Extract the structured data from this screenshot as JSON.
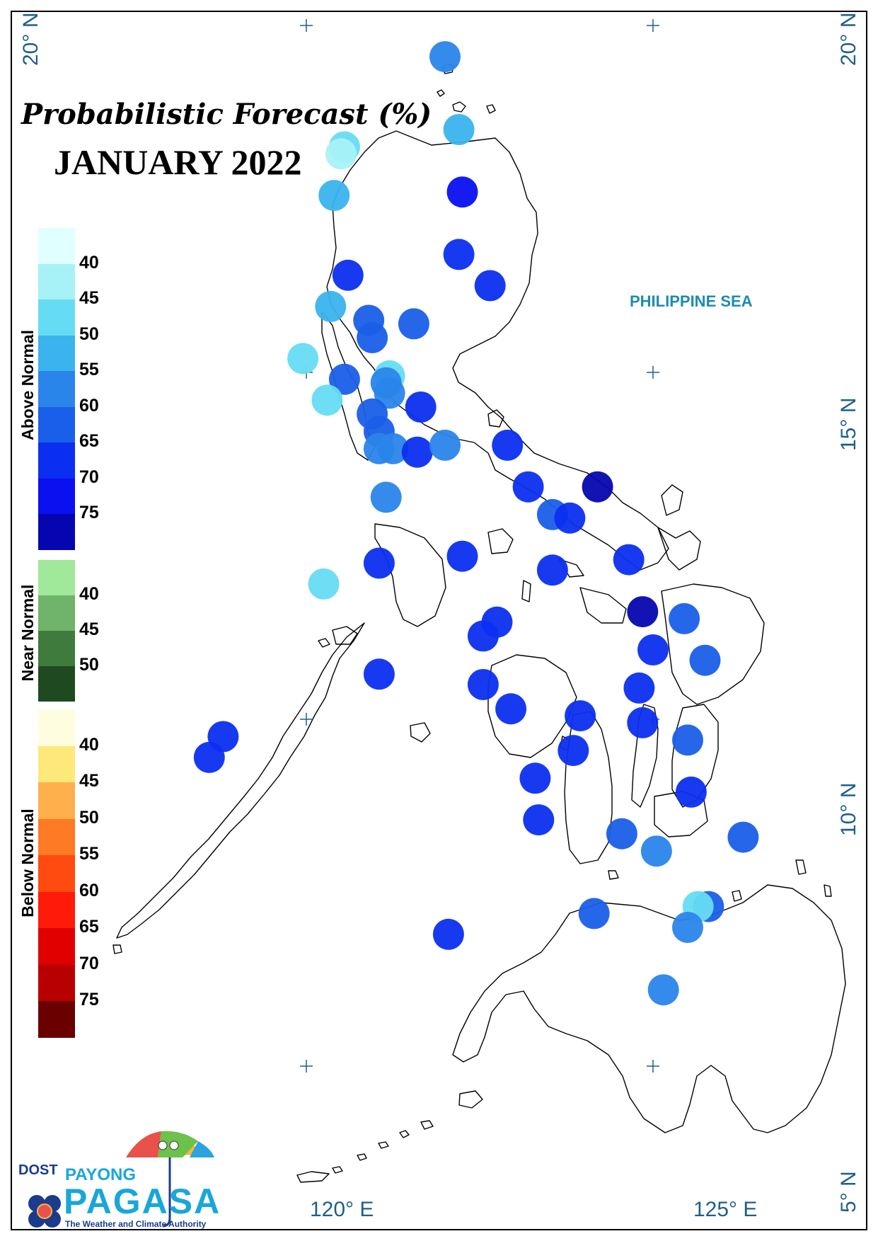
{
  "map": {
    "title": "Probabilistic Forecast (%)",
    "subtitle": "JANUARY 2022",
    "sea_label": "PHILIPPINE SEA",
    "coords": {
      "lat_20_left": "20° N",
      "lat_20_right": "20° N",
      "lat_15": "15° N",
      "lat_10": "10° N",
      "lat_5": "5° N",
      "lon_120": "120° E",
      "lon_125": "125° E"
    }
  },
  "legend": {
    "above_normal": {
      "title": "Above Normal",
      "ticks": [
        "40",
        "45",
        "50",
        "55",
        "60",
        "65",
        "70",
        "75"
      ],
      "colors": [
        "#e0ffff",
        "#a6f2f7",
        "#66dcf4",
        "#3bb3ee",
        "#2a85ea",
        "#1a5fe9",
        "#0b2ff0",
        "#0a10f0",
        "#0606b0"
      ]
    },
    "near_normal": {
      "title": "Near Normal",
      "ticks": [
        "40",
        "45",
        "50"
      ],
      "colors": [
        "#a0e89a",
        "#6fb46a",
        "#3f7b3c",
        "#1f4a1f"
      ]
    },
    "below_normal": {
      "title": "Below Normal",
      "ticks": [
        "40",
        "45",
        "50",
        "55",
        "60",
        "65",
        "70",
        "75"
      ],
      "colors": [
        "#fffde0",
        "#ffe87a",
        "#ffb04c",
        "#ff7a24",
        "#ff4a10",
        "#ff1a0a",
        "#e00000",
        "#b80000",
        "#6a0000"
      ]
    }
  },
  "logo": {
    "agency": "DOST",
    "brand_top": "PAYONG",
    "brand_main": "PAGASA",
    "tagline": "The Weather and Climate Authority"
  },
  "stations": [
    {
      "lon": 122.0,
      "lat": 19.55,
      "pct": 55,
      "color": "#2a85ea"
    },
    {
      "lon": 122.2,
      "lat": 18.5,
      "pct": 50,
      "color": "#3bb3ee"
    },
    {
      "lon": 120.55,
      "lat": 18.25,
      "pct": 45,
      "color": "#66dcf4"
    },
    {
      "lon": 120.5,
      "lat": 18.15,
      "pct": 40,
      "color": "#a6f2f7"
    },
    {
      "lon": 122.25,
      "lat": 17.6,
      "pct": 70,
      "color": "#0a10f0"
    },
    {
      "lon": 120.4,
      "lat": 17.55,
      "pct": 50,
      "color": "#3bb3ee"
    },
    {
      "lon": 122.2,
      "lat": 16.7,
      "pct": 65,
      "color": "#0b2ff0"
    },
    {
      "lon": 120.6,
      "lat": 16.4,
      "pct": 65,
      "color": "#0b2ff0"
    },
    {
      "lon": 122.65,
      "lat": 16.25,
      "pct": 65,
      "color": "#0b2ff0"
    },
    {
      "lon": 120.35,
      "lat": 15.95,
      "pct": 50,
      "color": "#3bb3ee"
    },
    {
      "lon": 120.9,
      "lat": 15.75,
      "pct": 60,
      "color": "#1a5fe9"
    },
    {
      "lon": 121.55,
      "lat": 15.7,
      "pct": 60,
      "color": "#1a5fe9"
    },
    {
      "lon": 120.95,
      "lat": 15.5,
      "pct": 60,
      "color": "#1a5fe9"
    },
    {
      "lon": 119.95,
      "lat": 15.2,
      "pct": 45,
      "color": "#66dcf4"
    },
    {
      "lon": 120.55,
      "lat": 14.9,
      "pct": 60,
      "color": "#1a5fe9"
    },
    {
      "lon": 121.2,
      "lat": 14.95,
      "pct": 45,
      "color": "#66dcf4"
    },
    {
      "lon": 121.15,
      "lat": 14.85,
      "pct": 55,
      "color": "#2a85ea"
    },
    {
      "lon": 121.2,
      "lat": 14.7,
      "pct": 55,
      "color": "#2a85ea"
    },
    {
      "lon": 120.3,
      "lat": 14.6,
      "pct": 45,
      "color": "#66dcf4"
    },
    {
      "lon": 121.65,
      "lat": 14.5,
      "pct": 65,
      "color": "#0b2ff0"
    },
    {
      "lon": 120.95,
      "lat": 14.4,
      "pct": 60,
      "color": "#1a5fe9"
    },
    {
      "lon": 121.05,
      "lat": 14.15,
      "pct": 60,
      "color": "#1a5fe9"
    },
    {
      "lon": 121.05,
      "lat": 13.9,
      "pct": 55,
      "color": "#2a85ea"
    },
    {
      "lon": 121.25,
      "lat": 13.9,
      "pct": 55,
      "color": "#2a85ea"
    },
    {
      "lon": 121.6,
      "lat": 13.85,
      "pct": 65,
      "color": "#0b2ff0"
    },
    {
      "lon": 122.0,
      "lat": 13.95,
      "pct": 55,
      "color": "#2a85ea"
    },
    {
      "lon": 122.9,
      "lat": 13.95,
      "pct": 65,
      "color": "#0b2ff0"
    },
    {
      "lon": 123.2,
      "lat": 13.35,
      "pct": 65,
      "color": "#0b2ff0"
    },
    {
      "lon": 124.2,
      "lat": 13.35,
      "pct": 75,
      "color": "#0606b0"
    },
    {
      "lon": 121.15,
      "lat": 13.2,
      "pct": 55,
      "color": "#2a85ea"
    },
    {
      "lon": 123.55,
      "lat": 12.95,
      "pct": 60,
      "color": "#1a5fe9"
    },
    {
      "lon": 123.8,
      "lat": 12.9,
      "pct": 65,
      "color": "#0b2ff0"
    },
    {
      "lon": 122.25,
      "lat": 12.35,
      "pct": 65,
      "color": "#0b2ff0"
    },
    {
      "lon": 124.65,
      "lat": 12.3,
      "pct": 65,
      "color": "#0b2ff0"
    },
    {
      "lon": 121.05,
      "lat": 12.25,
      "pct": 65,
      "color": "#0b2ff0"
    },
    {
      "lon": 123.55,
      "lat": 12.15,
      "pct": 65,
      "color": "#0b2ff0"
    },
    {
      "lon": 120.25,
      "lat": 11.95,
      "pct": 45,
      "color": "#66dcf4"
    },
    {
      "lon": 124.85,
      "lat": 11.55,
      "pct": 75,
      "color": "#0606b0"
    },
    {
      "lon": 125.45,
      "lat": 11.45,
      "pct": 60,
      "color": "#1a5fe9"
    },
    {
      "lon": 122.75,
      "lat": 11.4,
      "pct": 65,
      "color": "#0b2ff0"
    },
    {
      "lon": 122.55,
      "lat": 11.2,
      "pct": 65,
      "color": "#0b2ff0"
    },
    {
      "lon": 125.0,
      "lat": 11.0,
      "pct": 65,
      "color": "#0b2ff0"
    },
    {
      "lon": 125.75,
      "lat": 10.85,
      "pct": 60,
      "color": "#1a5fe9"
    },
    {
      "lon": 121.05,
      "lat": 10.65,
      "pct": 65,
      "color": "#0b2ff0"
    },
    {
      "lon": 122.55,
      "lat": 10.5,
      "pct": 65,
      "color": "#0b2ff0"
    },
    {
      "lon": 124.8,
      "lat": 10.45,
      "pct": 65,
      "color": "#0b2ff0"
    },
    {
      "lon": 122.95,
      "lat": 10.15,
      "pct": 65,
      "color": "#0b2ff0"
    },
    {
      "lon": 123.95,
      "lat": 10.05,
      "pct": 65,
      "color": "#0b2ff0"
    },
    {
      "lon": 124.85,
      "lat": 9.95,
      "pct": 65,
      "color": "#0b2ff0"
    },
    {
      "lon": 118.8,
      "lat": 9.75,
      "pct": 65,
      "color": "#0b2ff0"
    },
    {
      "lon": 125.5,
      "lat": 9.7,
      "pct": 60,
      "color": "#1a5fe9"
    },
    {
      "lon": 123.85,
      "lat": 9.55,
      "pct": 65,
      "color": "#0b2ff0"
    },
    {
      "lon": 118.6,
      "lat": 9.45,
      "pct": 65,
      "color": "#0b2ff0"
    },
    {
      "lon": 123.3,
      "lat": 9.15,
      "pct": 65,
      "color": "#0b2ff0"
    },
    {
      "lon": 125.55,
      "lat": 8.95,
      "pct": 65,
      "color": "#0b2ff0"
    },
    {
      "lon": 123.35,
      "lat": 8.55,
      "pct": 65,
      "color": "#0b2ff0"
    },
    {
      "lon": 124.55,
      "lat": 8.35,
      "pct": 60,
      "color": "#1a5fe9"
    },
    {
      "lon": 126.3,
      "lat": 8.3,
      "pct": 60,
      "color": "#1a5fe9"
    },
    {
      "lon": 125.05,
      "lat": 8.1,
      "pct": 55,
      "color": "#2a85ea"
    },
    {
      "lon": 125.8,
      "lat": 7.3,
      "pct": 60,
      "color": "#1a5fe9"
    },
    {
      "lon": 125.65,
      "lat": 7.3,
      "pct": 45,
      "color": "#66dcf4"
    },
    {
      "lon": 124.15,
      "lat": 7.2,
      "pct": 60,
      "color": "#1a5fe9"
    },
    {
      "lon": 125.5,
      "lat": 7.0,
      "pct": 55,
      "color": "#2a85ea"
    },
    {
      "lon": 122.05,
      "lat": 6.9,
      "pct": 65,
      "color": "#0b2ff0"
    },
    {
      "lon": 125.15,
      "lat": 6.1,
      "pct": 55,
      "color": "#2a85ea"
    }
  ]
}
